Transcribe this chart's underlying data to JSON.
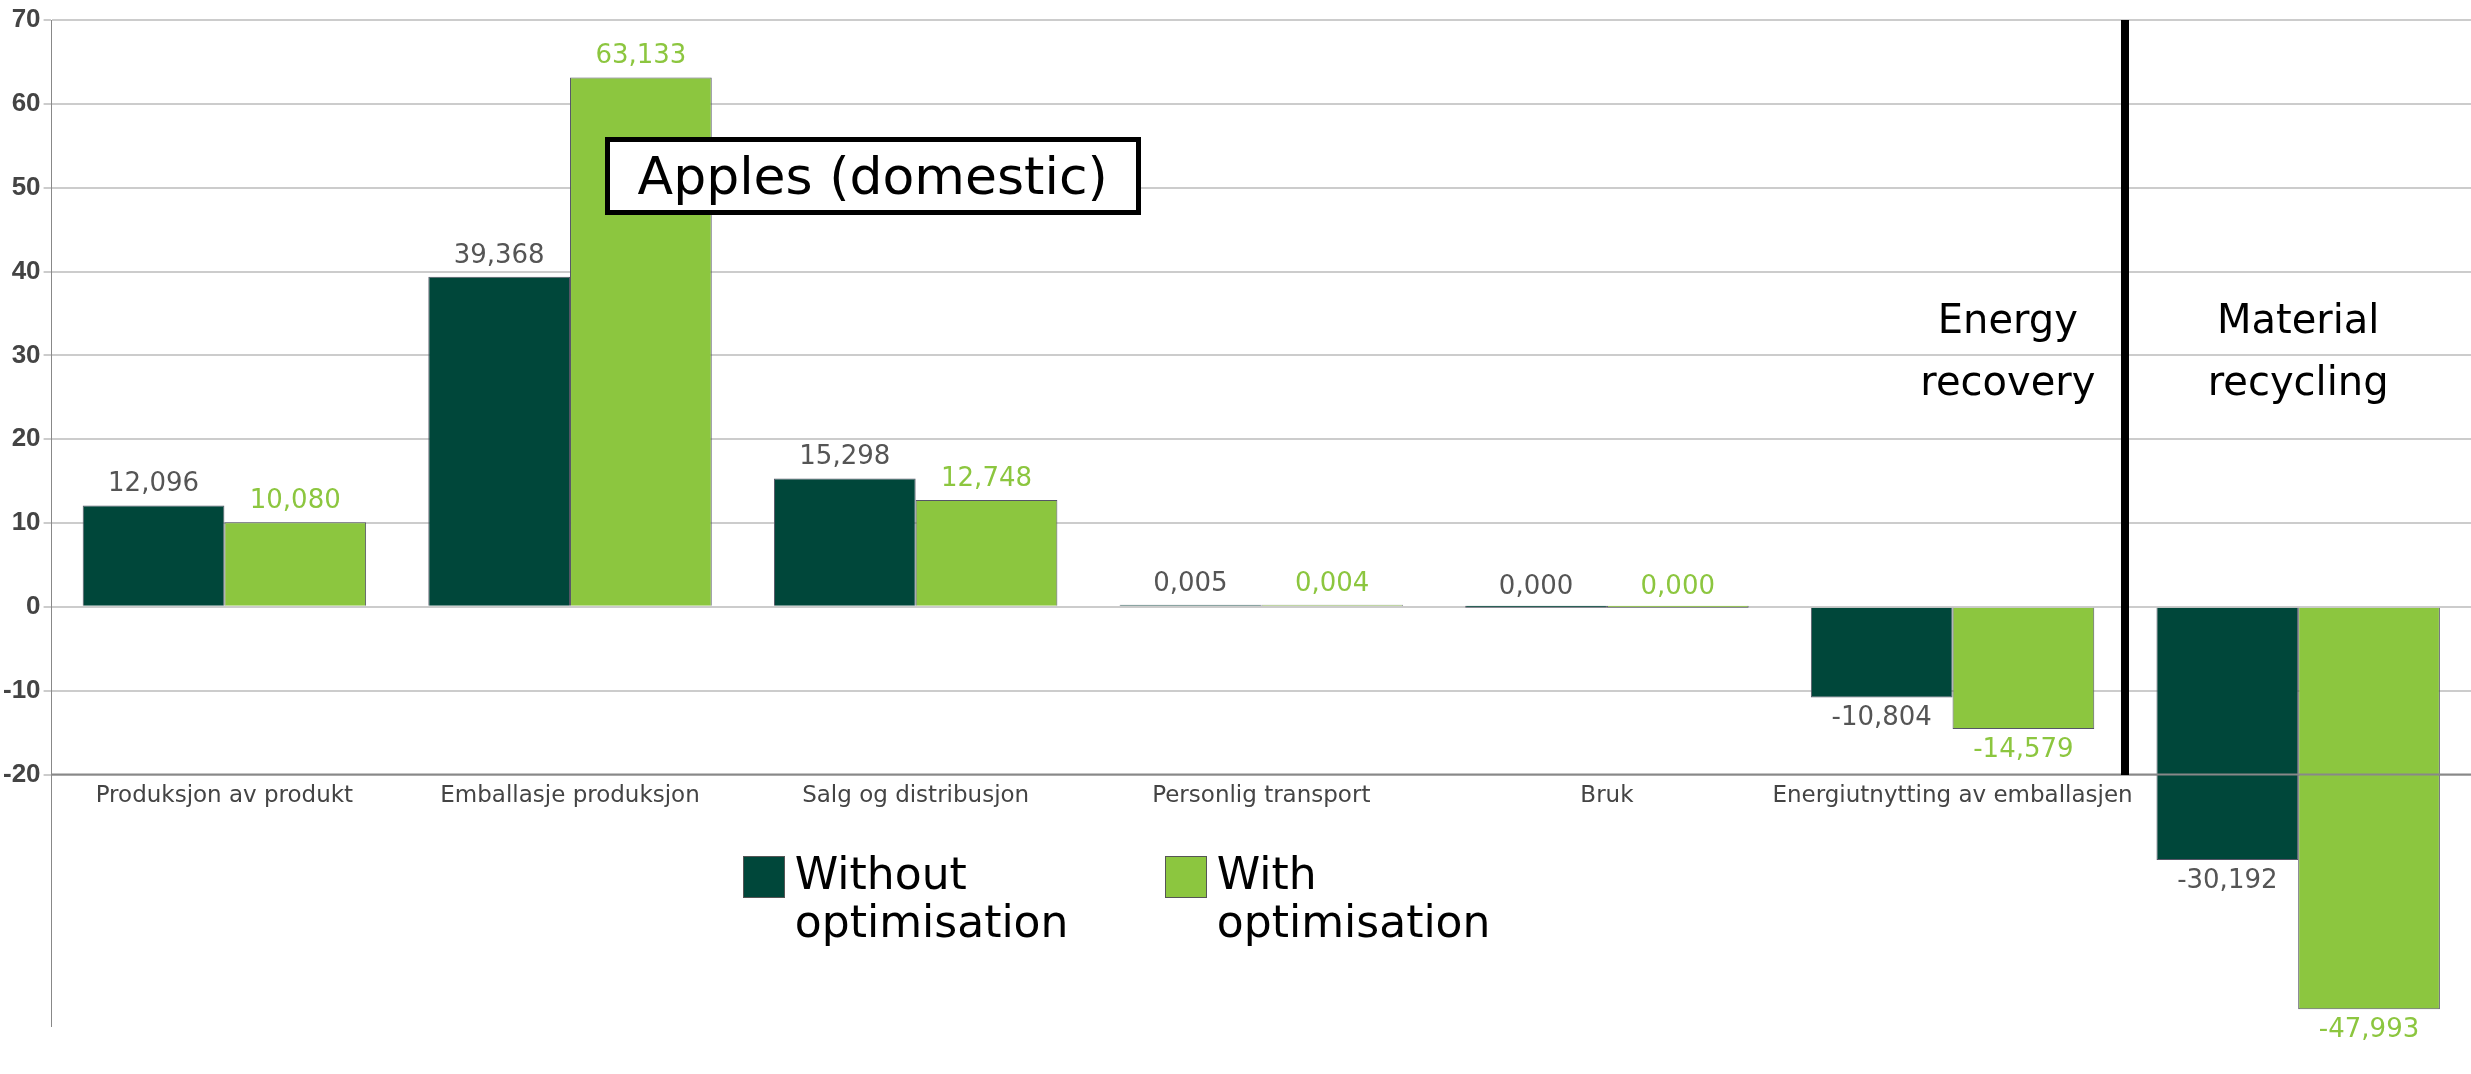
{
  "chart_data": {
    "type": "bar",
    "title": "Apples (domestic)",
    "categories": [
      "Produksjon av produkt",
      "Emballasje produksjon",
      "Salg og distribusjon",
      "Personlig transport",
      "Bruk",
      "Energiutnytting av emballasjen",
      null
    ],
    "series": [
      {
        "name": "Without optimisation",
        "color": "#00473a",
        "values": [
          12.096,
          39.368,
          15.298,
          0.005,
          0.0,
          -10.804,
          -30.192
        ],
        "value_labels": [
          "12,096",
          "39,368",
          "15,298",
          "0,005",
          "0,000",
          "-10,804",
          "-30,192"
        ]
      },
      {
        "name": "With optimisation",
        "color": "#8cc63f",
        "values": [
          10.08,
          63.133,
          12.748,
          0.004,
          0.0,
          -14.579,
          -47.993
        ],
        "value_labels": [
          "10,080",
          "63,133",
          "12,748",
          "0,004",
          "0,000",
          "-14,579",
          "-47,993"
        ]
      }
    ],
    "ylim": [
      -50,
      70
    ],
    "yticks": [
      -20,
      -10,
      0,
      10,
      20,
      30,
      40,
      50,
      60,
      70
    ],
    "grid": "y",
    "legend": "bottom",
    "annotations": [
      "Energy recovery",
      "Material recycling"
    ]
  }
}
